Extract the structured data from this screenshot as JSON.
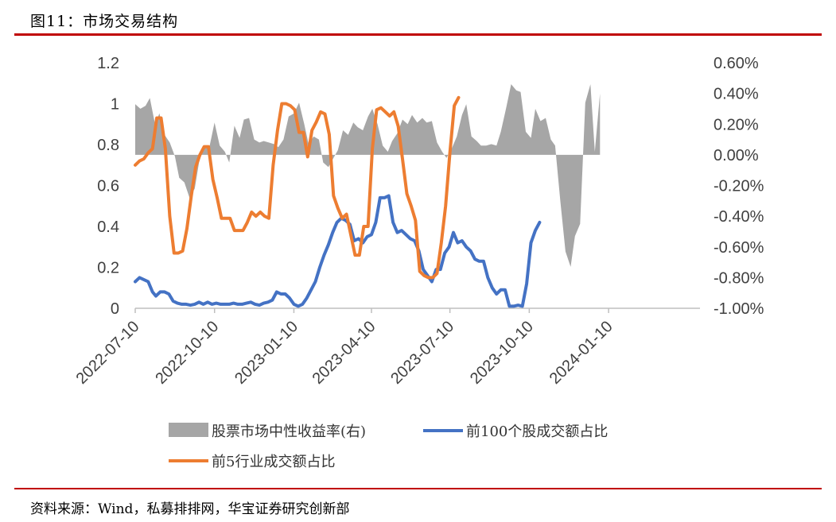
{
  "title": "图11：市场交易结构",
  "source": "资料来源：Wind，私募排排网，华宝证券研究创新部",
  "chart_data": {
    "type": "line",
    "x_range": [
      "2022-07-10",
      "2024-04-25"
    ],
    "x_tick_labels": [
      "2022-07-10",
      "2022-10-10",
      "2023-01-10",
      "2023-04-10",
      "2023-07-10",
      "2023-10-10",
      "2024-01-10"
    ],
    "ylim_left": [
      0,
      1.2
    ],
    "yticks_left": [
      "0",
      "0.2",
      "0.4",
      "0.6",
      "0.8",
      "1",
      "1.2"
    ],
    "ylim_right": [
      -1.0,
      0.6
    ],
    "yticks_right": [
      "-1.00%",
      "-0.80%",
      "-0.60%",
      "-0.40%",
      "-0.20%",
      "0.00%",
      "0.20%",
      "0.40%",
      "0.60%"
    ],
    "grid": "horizontal",
    "legend_position": "bottom",
    "series": [
      {
        "name": "股票市场中性收益率(右)",
        "type": "area",
        "axis": "right",
        "unit": "%",
        "color": "#a6a6a6",
        "points": [
          [
            "2022-07-10",
            0.33
          ],
          [
            "2022-07-16",
            0.3
          ],
          [
            "2022-07-22",
            0.32
          ],
          [
            "2022-07-27",
            0.37
          ],
          [
            "2022-08-02",
            0.2
          ],
          [
            "2022-08-07",
            0.27
          ],
          [
            "2022-08-13",
            0.13
          ],
          [
            "2022-08-19",
            0.08
          ],
          [
            "2022-08-25",
            -0.01
          ],
          [
            "2022-08-30",
            -0.15
          ],
          [
            "2022-09-05",
            -0.18
          ],
          [
            "2022-09-11",
            -0.28
          ],
          [
            "2022-09-17",
            -0.22
          ],
          [
            "2022-09-22",
            -0.05
          ],
          [
            "2022-09-28",
            0.06
          ],
          [
            "2022-10-04",
            0.05
          ],
          [
            "2022-10-10",
            0.21
          ],
          [
            "2022-10-16",
            0.06
          ],
          [
            "2022-10-22",
            0.02
          ],
          [
            "2022-10-27",
            -0.05
          ],
          [
            "2022-11-02",
            0.19
          ],
          [
            "2022-11-08",
            0.11
          ],
          [
            "2022-11-13",
            0.23
          ],
          [
            "2022-11-19",
            0.24
          ],
          [
            "2022-11-25",
            0.1
          ],
          [
            "2022-12-01",
            0.08
          ],
          [
            "2022-12-06",
            0.09
          ],
          [
            "2022-12-12",
            0.08
          ],
          [
            "2022-12-18",
            0.07
          ],
          [
            "2022-12-23",
            0.05
          ],
          [
            "2022-12-29",
            0.1
          ],
          [
            "2023-01-04",
            0.25
          ],
          [
            "2023-01-10",
            0.27
          ],
          [
            "2023-01-16",
            0.34
          ],
          [
            "2023-01-22",
            0.2
          ],
          [
            "2023-01-27",
            0.07
          ],
          [
            "2023-02-02",
            0.12
          ],
          [
            "2023-02-08",
            0.1
          ],
          [
            "2023-02-13",
            -0.05
          ],
          [
            "2023-02-19",
            -0.08
          ],
          [
            "2023-02-25",
            -0.02
          ],
          [
            "2023-03-02",
            0.03
          ],
          [
            "2023-03-08",
            0.16
          ],
          [
            "2023-03-14",
            0.13
          ],
          [
            "2023-03-20",
            0.21
          ],
          [
            "2023-03-25",
            0.18
          ],
          [
            "2023-03-31",
            0.16
          ],
          [
            "2023-04-06",
            0.25
          ],
          [
            "2023-04-11",
            0.3
          ],
          [
            "2023-04-17",
            0.2
          ],
          [
            "2023-04-23",
            0.06
          ],
          [
            "2023-04-29",
            0.02
          ],
          [
            "2023-05-04",
            0.09
          ],
          [
            "2023-05-10",
            0.14
          ],
          [
            "2023-05-16",
            0.23
          ],
          [
            "2023-05-22",
            0.2
          ],
          [
            "2023-05-27",
            0.26
          ],
          [
            "2023-06-02",
            0.21
          ],
          [
            "2023-06-08",
            0.24
          ],
          [
            "2023-06-13",
            0.21
          ],
          [
            "2023-06-19",
            0.22
          ],
          [
            "2023-06-25",
            0.08
          ],
          [
            "2023-07-01",
            0.02
          ],
          [
            "2023-07-06",
            -0.02
          ],
          [
            "2023-07-12",
            0.04
          ],
          [
            "2023-07-18",
            0.12
          ],
          [
            "2023-07-24",
            0.26
          ],
          [
            "2023-07-29",
            0.33
          ],
          [
            "2023-08-04",
            0.12
          ],
          [
            "2023-08-10",
            0.09
          ],
          [
            "2023-08-15",
            0.06
          ],
          [
            "2023-08-21",
            0.06
          ],
          [
            "2023-08-27",
            0.07
          ],
          [
            "2023-09-02",
            0.06
          ],
          [
            "2023-09-07",
            0.15
          ],
          [
            "2023-09-13",
            0.3
          ],
          [
            "2023-09-19",
            0.46
          ],
          [
            "2023-09-25",
            0.42
          ],
          [
            "2023-09-30",
            0.41
          ],
          [
            "2023-10-06",
            0.15
          ],
          [
            "2023-10-12",
            0.11
          ],
          [
            "2023-10-17",
            0.3
          ],
          [
            "2023-10-23",
            0.22
          ],
          [
            "2023-10-29",
            0.24
          ],
          [
            "2023-11-04",
            0.1
          ],
          [
            "2023-11-09",
            0.06
          ],
          [
            "2023-11-15",
            -0.3
          ],
          [
            "2023-11-21",
            -0.63
          ],
          [
            "2023-11-27",
            -0.73
          ],
          [
            "2023-12-02",
            -0.53
          ],
          [
            "2023-12-08",
            -0.45
          ],
          [
            "2023-12-14",
            0.34
          ],
          [
            "2023-12-20",
            0.46
          ],
          [
            "2023-12-25",
            0.02
          ],
          [
            "2023-12-31",
            0.4
          ]
        ]
      },
      {
        "name": "前100个股成交额占比",
        "type": "line",
        "axis": "left",
        "color": "#4472c4",
        "points": [
          [
            "2022-07-10",
            0.13
          ],
          [
            "2022-07-15",
            0.15
          ],
          [
            "2022-07-20",
            0.14
          ],
          [
            "2022-07-25",
            0.13
          ],
          [
            "2022-07-30",
            0.08
          ],
          [
            "2022-08-03",
            0.06
          ],
          [
            "2022-08-08",
            0.08
          ],
          [
            "2022-08-13",
            0.08
          ],
          [
            "2022-08-18",
            0.07
          ],
          [
            "2022-08-23",
            0.035
          ],
          [
            "2022-08-28",
            0.025
          ],
          [
            "2022-09-02",
            0.02
          ],
          [
            "2022-09-07",
            0.02
          ],
          [
            "2022-09-12",
            0.015
          ],
          [
            "2022-09-17",
            0.02
          ],
          [
            "2022-09-22",
            0.03
          ],
          [
            "2022-09-27",
            0.02
          ],
          [
            "2022-10-02",
            0.03
          ],
          [
            "2022-10-07",
            0.02
          ],
          [
            "2022-10-12",
            0.025
          ],
          [
            "2022-10-17",
            0.02
          ],
          [
            "2022-10-22",
            0.02
          ],
          [
            "2022-10-27",
            0.02
          ],
          [
            "2022-11-01",
            0.025
          ],
          [
            "2022-11-06",
            0.02
          ],
          [
            "2022-11-11",
            0.02
          ],
          [
            "2022-11-16",
            0.025
          ],
          [
            "2022-11-21",
            0.03
          ],
          [
            "2022-11-26",
            0.02
          ],
          [
            "2022-12-01",
            0.015
          ],
          [
            "2022-12-06",
            0.025
          ],
          [
            "2022-12-11",
            0.03
          ],
          [
            "2022-12-16",
            0.04
          ],
          [
            "2022-12-21",
            0.08
          ],
          [
            "2022-12-26",
            0.07
          ],
          [
            "2022-12-31",
            0.07
          ],
          [
            "2023-01-05",
            0.05
          ],
          [
            "2023-01-10",
            0.02
          ],
          [
            "2023-01-15",
            0.01
          ],
          [
            "2023-01-20",
            0.02
          ],
          [
            "2023-01-25",
            0.05
          ],
          [
            "2023-01-30",
            0.09
          ],
          [
            "2023-02-04",
            0.13
          ],
          [
            "2023-02-09",
            0.2
          ],
          [
            "2023-02-14",
            0.26
          ],
          [
            "2023-02-19",
            0.31
          ],
          [
            "2023-02-24",
            0.37
          ],
          [
            "2023-03-01",
            0.42
          ],
          [
            "2023-03-06",
            0.44
          ],
          [
            "2023-03-11",
            0.43
          ],
          [
            "2023-03-16",
            0.41
          ],
          [
            "2023-03-21",
            0.33
          ],
          [
            "2023-03-26",
            0.34
          ],
          [
            "2023-03-31",
            0.32
          ],
          [
            "2023-04-05",
            0.35
          ],
          [
            "2023-04-10",
            0.36
          ],
          [
            "2023-04-15",
            0.42
          ],
          [
            "2023-04-20",
            0.54
          ],
          [
            "2023-04-25",
            0.54
          ],
          [
            "2023-04-30",
            0.55
          ],
          [
            "2023-05-05",
            0.42
          ],
          [
            "2023-05-10",
            0.37
          ],
          [
            "2023-05-15",
            0.38
          ],
          [
            "2023-05-20",
            0.36
          ],
          [
            "2023-05-25",
            0.34
          ],
          [
            "2023-05-30",
            0.33
          ],
          [
            "2023-06-04",
            0.28
          ],
          [
            "2023-06-09",
            0.19
          ],
          [
            "2023-06-14",
            0.16
          ],
          [
            "2023-06-19",
            0.13
          ],
          [
            "2023-06-24",
            0.19
          ],
          [
            "2023-06-29",
            0.19
          ],
          [
            "2023-07-04",
            0.27
          ],
          [
            "2023-07-09",
            0.3
          ],
          [
            "2023-07-14",
            0.37
          ],
          [
            "2023-07-19",
            0.32
          ],
          [
            "2023-07-24",
            0.33
          ],
          [
            "2023-07-29",
            0.3
          ],
          [
            "2023-08-03",
            0.28
          ],
          [
            "2023-08-08",
            0.24
          ],
          [
            "2023-08-13",
            0.23
          ],
          [
            "2023-08-18",
            0.23
          ],
          [
            "2023-08-23",
            0.15
          ],
          [
            "2023-08-28",
            0.1
          ],
          [
            "2023-09-02",
            0.07
          ],
          [
            "2023-09-07",
            0.09
          ],
          [
            "2023-09-12",
            0.09
          ],
          [
            "2023-09-17",
            0.01
          ],
          [
            "2023-09-22",
            0.01
          ],
          [
            "2023-09-27",
            0.015
          ],
          [
            "2023-10-02",
            0.01
          ],
          [
            "2023-10-07",
            0.12
          ],
          [
            "2023-10-12",
            0.32
          ],
          [
            "2023-10-17",
            0.38
          ],
          [
            "2023-10-22",
            0.42
          ]
        ]
      },
      {
        "name": "前5行业成交额占比",
        "type": "line",
        "axis": "left",
        "color": "#ed7d31",
        "points": [
          [
            "2022-07-10",
            0.7
          ],
          [
            "2022-07-15",
            0.72
          ],
          [
            "2022-07-20",
            0.73
          ],
          [
            "2022-07-25",
            0.76
          ],
          [
            "2022-07-30",
            0.78
          ],
          [
            "2022-08-04",
            0.93
          ],
          [
            "2022-08-09",
            0.93
          ],
          [
            "2022-08-14",
            0.78
          ],
          [
            "2022-08-19",
            0.45
          ],
          [
            "2022-08-24",
            0.27
          ],
          [
            "2022-08-29",
            0.27
          ],
          [
            "2022-09-03",
            0.28
          ],
          [
            "2022-09-08",
            0.39
          ],
          [
            "2022-09-13",
            0.55
          ],
          [
            "2022-09-18",
            0.69
          ],
          [
            "2022-09-23",
            0.75
          ],
          [
            "2022-09-28",
            0.79
          ],
          [
            "2022-10-03",
            0.79
          ],
          [
            "2022-10-08",
            0.63
          ],
          [
            "2022-10-13",
            0.54
          ],
          [
            "2022-10-18",
            0.44
          ],
          [
            "2022-10-23",
            0.44
          ],
          [
            "2022-10-28",
            0.44
          ],
          [
            "2022-11-02",
            0.38
          ],
          [
            "2022-11-07",
            0.38
          ],
          [
            "2022-11-12",
            0.38
          ],
          [
            "2022-11-17",
            0.42
          ],
          [
            "2022-11-22",
            0.47
          ],
          [
            "2022-11-27",
            0.45
          ],
          [
            "2022-12-02",
            0.47
          ],
          [
            "2022-12-07",
            0.45
          ],
          [
            "2022-12-12",
            0.44
          ],
          [
            "2022-12-17",
            0.7
          ],
          [
            "2022-12-22",
            0.87
          ],
          [
            "2022-12-27",
            1.0
          ],
          [
            "2023-01-01",
            1.0
          ],
          [
            "2023-01-06",
            0.99
          ],
          [
            "2023-01-11",
            0.97
          ],
          [
            "2023-01-16",
            0.86
          ],
          [
            "2023-01-21",
            0.86
          ],
          [
            "2023-01-26",
            0.74
          ],
          [
            "2023-01-31",
            0.87
          ],
          [
            "2023-02-05",
            0.91
          ],
          [
            "2023-02-10",
            0.96
          ],
          [
            "2023-02-15",
            0.95
          ],
          [
            "2023-02-20",
            0.85
          ],
          [
            "2023-02-25",
            0.55
          ],
          [
            "2023-03-02",
            0.49
          ],
          [
            "2023-03-07",
            0.44
          ],
          [
            "2023-03-12",
            0.46
          ],
          [
            "2023-03-17",
            0.36
          ],
          [
            "2023-03-22",
            0.26
          ],
          [
            "2023-03-27",
            0.26
          ],
          [
            "2023-04-01",
            0.4
          ],
          [
            "2023-04-06",
            0.4
          ],
          [
            "2023-04-11",
            0.78
          ],
          [
            "2023-04-16",
            0.97
          ],
          [
            "2023-04-21",
            0.98
          ],
          [
            "2023-04-26",
            0.96
          ],
          [
            "2023-05-01",
            0.94
          ],
          [
            "2023-05-06",
            0.96
          ],
          [
            "2023-05-11",
            0.89
          ],
          [
            "2023-05-16",
            0.73
          ],
          [
            "2023-05-21",
            0.56
          ],
          [
            "2023-05-26",
            0.5
          ],
          [
            "2023-05-31",
            0.43
          ],
          [
            "2023-06-05",
            0.18
          ],
          [
            "2023-06-10",
            0.16
          ],
          [
            "2023-06-15",
            0.15
          ],
          [
            "2023-06-20",
            0.15
          ],
          [
            "2023-06-25",
            0.17
          ],
          [
            "2023-06-30",
            0.32
          ],
          [
            "2023-07-05",
            0.5
          ],
          [
            "2023-07-10",
            0.76
          ],
          [
            "2023-07-15",
            0.99
          ],
          [
            "2023-07-20",
            1.03
          ]
        ]
      }
    ]
  }
}
